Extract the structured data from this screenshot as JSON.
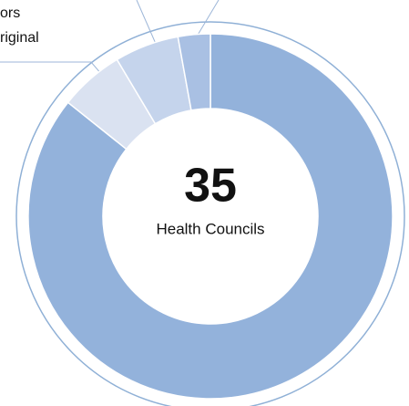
{
  "chart_data": {
    "type": "donut",
    "values": [
      30,
      2,
      2,
      1
    ],
    "colors": [
      "#93b2db",
      "#dae2f1",
      "#c5d4ec",
      "#a9c0e3"
    ],
    "center_value": "35",
    "center_label": "Health Councils",
    "annotations": [
      "ors",
      "riginal"
    ]
  }
}
